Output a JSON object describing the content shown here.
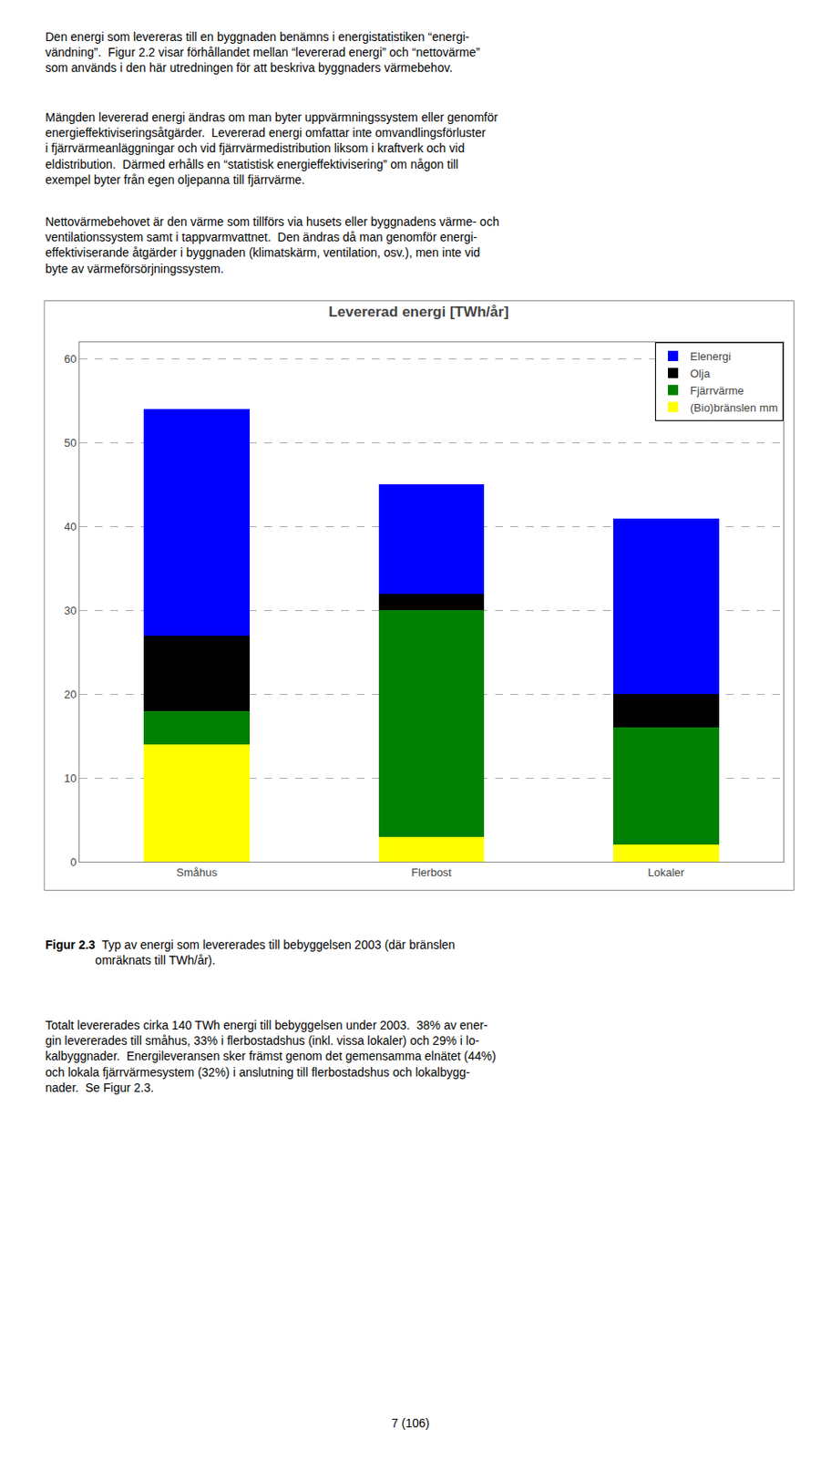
{
  "chart_data": {
    "type": "bar",
    "title": "Levererad energi [TWh/år]",
    "categories": [
      "Småhus",
      "Flerbost",
      "Lokaler"
    ],
    "series": [
      {
        "name": "(Bio)bränslen mm",
        "color": "#FFFF00",
        "values": [
          14,
          3,
          2
        ]
      },
      {
        "name": "Fjärrvärme",
        "color": "#008000",
        "values": [
          4,
          27,
          14
        ]
      },
      {
        "name": "Olja",
        "color": "#000000",
        "values": [
          9,
          2,
          4
        ]
      },
      {
        "name": "Elenergi",
        "color": "#0000FF",
        "values": [
          27,
          13,
          21
        ]
      }
    ],
    "stacked": true,
    "ylim": [
      0,
      62
    ],
    "yticks": [
      0,
      10,
      20,
      30,
      40,
      50,
      60
    ],
    "grid": true,
    "legend": "upper right"
  },
  "page": {
    "paragraphs_before": [
      "Den energi som levereras till en byggnaden benämns i energistatistiken “energi-\nvändning”.  Figur 2.2 visar förhållandet mellan “levererad energi” och “nettovärme”\nsom används i den här utredningen för att beskriva byggnaders värmebehov.",
      "Mängden levererad energi ändras om man byter uppvärmningssystem eller genomför\nenergieffektiviseringsåtgärder.  Levererad energi omfattar inte omvandlingsförluster\ni fjärrvärmeanläggningar och vid fjärrvärmedistribution liksom i kraftverk och vid\neldistribution.  Därmed erhålls en “statistisk energieffektivisering” om någon till\nexempel byter från egen oljepanna till fjärrvärme.",
      "Nettovärmebehovet är den värme som tillförs via husets eller byggnadens värme- och\nventilationssystem samt i tappvarmvattnet.  Den ändras då man genomför energi-\neffektiviserande åtgärder i byggnaden (klimatskärm, ventilation, osv.), men inte vid\nbyte av värmeförsörjningssystem."
    ],
    "caption_bold": "Figur 2.3",
    "caption": "  Typ av energi som levererades till bebyggelsen 2003 (där bränslen\nomräknats till TWh/år).",
    "paragraphs_after": [
      "Totalt levererades cirka 140 TWh energi till bebyggelsen under 2003.  38% av ener-\ngin levererades till småhus, 33% i flerbostadshus (inkl. vissa lokaler) och 29% i lo-\nkalbyggnader.  Energileveransen sker främst genom det gemensamma elnätet (44%)\noch lokala fjärrvärmesystem (32%) i anslutning till flerbostadshus och lokalbygg-\nnader.  Se Figur 2.3."
    ],
    "page_number": "7 (106)"
  }
}
